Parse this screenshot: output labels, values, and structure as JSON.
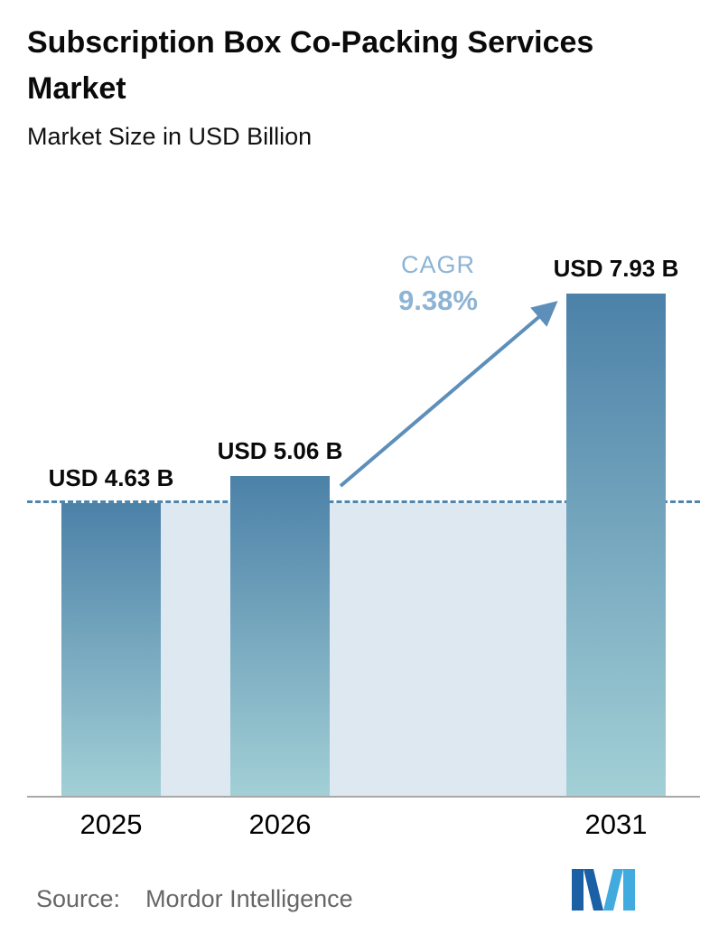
{
  "header": {
    "title": "Subscription Box Co-Packing Services Market",
    "subtitle": "Market Size in USD Billion"
  },
  "chart_data": {
    "type": "bar",
    "title": "Subscription Box Co-Packing Services Market",
    "subtitle": "Market Size in USD Billion",
    "unit": "USD Billion",
    "categories": [
      "2025",
      "2026",
      "2031"
    ],
    "values": [
      4.63,
      5.06,
      7.93
    ],
    "value_labels": [
      "USD 4.63 B",
      "USD 5.06 B",
      "USD 7.93 B"
    ],
    "cagr": {
      "label": "CAGR",
      "value": "9.38%"
    },
    "reference_line": {
      "at": 4.63,
      "style": "dashed"
    },
    "ylim": [
      0,
      9.7
    ],
    "grid": false,
    "legend": false
  },
  "footer": {
    "source_label": "Source:",
    "source_value": "Mordor Intelligence"
  },
  "colors": {
    "bar_top": "#4c81a8",
    "bar_bottom": "#a3d0d6",
    "band": "#dde8f0",
    "dashed": "#4e86ae",
    "cagr": "#8db4d4",
    "arrow": "#5d8fba",
    "axis": "#a8a8a8",
    "source_text": "#666666",
    "logo_dark": "#1b5fa5",
    "logo_light": "#41aade"
  }
}
